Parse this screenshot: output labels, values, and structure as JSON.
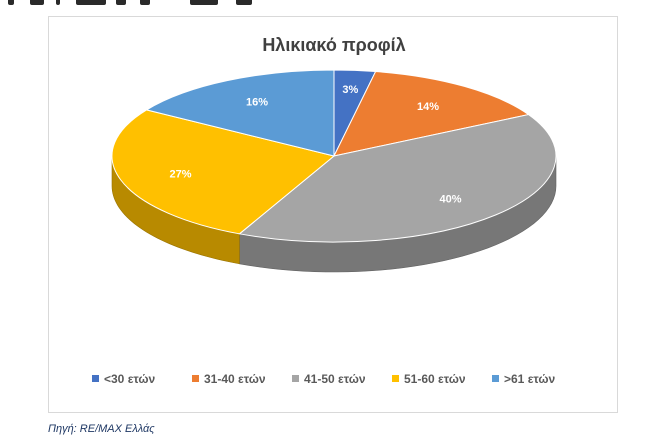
{
  "chart_data": {
    "type": "pie",
    "title": "Ηλικιακό προφίλ",
    "categories": [
      "<30 ετών",
      "31-40 ετών",
      "41-50 ετών",
      "51-60 ετών",
      ">61 ετών"
    ],
    "values": [
      3,
      14,
      40,
      27,
      16
    ],
    "value_labels": [
      "3%",
      "14%",
      "40%",
      "27%",
      "16%"
    ],
    "colors": [
      "#4472C4",
      "#ED7D31",
      "#A5A5A5",
      "#FFC000",
      "#5B9BD5"
    ],
    "style": "3d",
    "legend_position": "bottom"
  },
  "source": "Πηγή: RE/MAX Ελλάς"
}
